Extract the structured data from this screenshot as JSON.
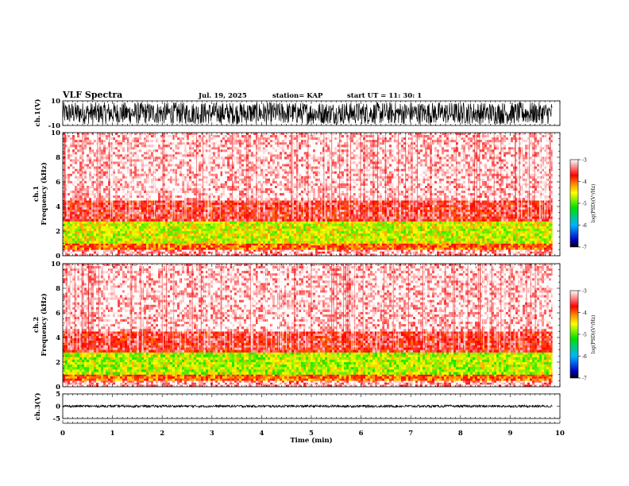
{
  "header": {
    "title": "VLF Spectra",
    "date": "Jul. 19, 2025",
    "station": "station= KAP",
    "start": "start UT = 11: 30: 1"
  },
  "chart_data": {
    "type": "spectrogram",
    "time_axis": {
      "label": "Time (min)",
      "range": [
        0,
        10
      ],
      "ticks": [
        "0",
        "1",
        "2",
        "3",
        "4",
        "5",
        "6",
        "7",
        "8",
        "9",
        "10"
      ],
      "data_end_min": 9.85
    },
    "panels": [
      {
        "id": "ch1_waveform",
        "kind": "waveform",
        "ylabel": "ch.1(V)",
        "ylim": [
          -10,
          10
        ],
        "ytick_labels": [
          "10",
          "-10"
        ],
        "amplitude_range": [
          -9,
          9
        ]
      },
      {
        "id": "ch1_spectrogram",
        "kind": "spectrogram",
        "ylabel_line1": "ch.1",
        "ylabel_line2": "Frequency (kHz)",
        "ylim_khz": [
          0,
          10
        ],
        "ytick_labels": [
          "0",
          "2",
          "4",
          "6",
          "8",
          "10"
        ],
        "bands_log_psd": [
          {
            "from_khz": 0.0,
            "to_khz": 0.5,
            "level": -3.2
          },
          {
            "from_khz": 0.5,
            "to_khz": 1.0,
            "level": -4.0
          },
          {
            "from_khz": 1.0,
            "to_khz": 2.8,
            "level": -4.6
          },
          {
            "from_khz": 2.8,
            "to_khz": 4.5,
            "level": -3.6
          },
          {
            "from_khz": 4.5,
            "to_khz": 10.0,
            "level": -3.1
          }
        ],
        "colorbar": {
          "label": "log(PSD)(V²/Hz)",
          "range": [
            -7,
            -3
          ],
          "tick_labels": [
            "-3",
            "-4",
            "-5",
            "-6",
            "-7"
          ]
        }
      },
      {
        "id": "ch2_spectrogram",
        "kind": "spectrogram",
        "ylabel_line1": "ch.2",
        "ylabel_line2": "Frequency (kHz)",
        "ylim_khz": [
          0,
          10
        ],
        "ytick_labels": [
          "0",
          "2",
          "4",
          "6",
          "8",
          "10"
        ],
        "bands_log_psd": [
          {
            "from_khz": 0.0,
            "to_khz": 0.5,
            "level": -3.2
          },
          {
            "from_khz": 0.5,
            "to_khz": 1.0,
            "level": -4.0
          },
          {
            "from_khz": 1.0,
            "to_khz": 2.8,
            "level": -4.7
          },
          {
            "from_khz": 2.8,
            "to_khz": 4.5,
            "level": -3.6
          },
          {
            "from_khz": 4.5,
            "to_khz": 10.0,
            "level": -3.1
          }
        ],
        "colorbar": {
          "label": "log(PSD)(V²/Hz)",
          "range": [
            -7,
            -3
          ],
          "tick_labels": [
            "-3",
            "-4",
            "-5",
            "-6",
            "-7"
          ]
        }
      },
      {
        "id": "ch3_waveform",
        "kind": "waveform",
        "ylabel": "ch.3(V)",
        "ylim": [
          -5,
          5
        ],
        "ytick_labels": [
          "5",
          "0",
          "-5"
        ],
        "amplitude_range": [
          -0.5,
          0.5
        ]
      }
    ]
  }
}
